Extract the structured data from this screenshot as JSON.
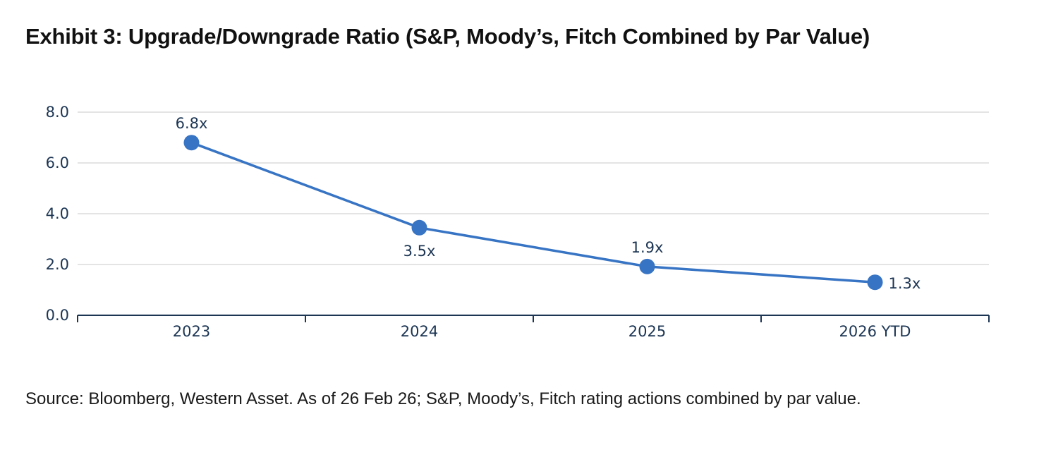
{
  "chart_data": {
    "type": "line",
    "title": "Exhibit 3: Upgrade/Downgrade Ratio (S&P, Moody’s, Fitch Combined by Par Value)",
    "xlabel": "",
    "ylabel": "",
    "categories": [
      "2023",
      "2024",
      "2025",
      "2026 YTD"
    ],
    "series": [
      {
        "values": [
          6.8,
          3.45,
          1.92,
          1.3
        ],
        "data_labels": [
          "6.8x",
          "3.5x",
          "1.9x",
          "1.3x"
        ]
      }
    ],
    "ylim": [
      0,
      8
    ],
    "yticks": [
      0,
      2,
      4,
      6,
      8
    ],
    "ytick_labels": [
      "0.0",
      "2.0",
      "4.0",
      "6.0",
      "8.0"
    ],
    "grid": "horizontal",
    "legend": "none",
    "colors": {
      "line": "#3774c4",
      "grid": "#c8c8c8",
      "axis": "#1c3553",
      "tick_text": "#1c3553"
    }
  },
  "source": "Source: Bloomberg, Western Asset. As of 26 Feb 26; S&P, Moody’s, Fitch rating actions combined by par value."
}
